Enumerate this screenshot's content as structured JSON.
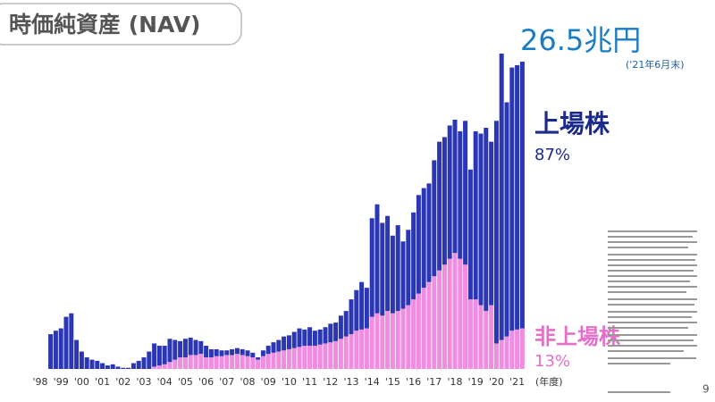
{
  "chart_data": {
    "type": "bar",
    "stacked": true,
    "title": "時価純資産 (NAV)",
    "total_label": "26.5兆円",
    "total_note": "('21年6月末)",
    "x_axis_label": "(年度)",
    "page_number": "9",
    "categories": [
      "'98",
      null,
      null,
      null,
      "'99",
      null,
      null,
      null,
      "'00",
      null,
      null,
      null,
      "'01",
      null,
      null,
      null,
      "'02",
      null,
      null,
      null,
      "'03",
      null,
      null,
      null,
      "'04",
      null,
      null,
      null,
      "'05",
      null,
      null,
      null,
      "'06",
      null,
      null,
      null,
      "'07",
      null,
      null,
      null,
      "'08",
      null,
      null,
      null,
      "'09",
      null,
      null,
      null,
      "'10",
      null,
      null,
      null,
      "'11",
      null,
      null,
      null,
      "'12",
      null,
      null,
      null,
      "'13",
      null,
      null,
      null,
      "'14",
      null,
      null,
      null,
      "'15",
      null,
      null,
      null,
      "'16",
      null,
      null,
      null,
      "'17",
      null,
      null,
      null,
      "'18",
      null,
      null,
      null,
      "'19",
      null,
      null,
      null,
      "'20",
      null,
      null,
      null,
      "'21",
      null
    ],
    "series": [
      {
        "name": "非上場株",
        "share": "13%",
        "color": "#f08de0",
        "values": [
          0,
          0,
          0,
          0,
          0,
          0,
          0,
          0,
          0,
          0,
          0,
          0,
          0,
          0,
          0,
          0,
          0,
          0,
          0,
          0,
          0,
          0,
          0.2,
          0.3,
          0.4,
          0.6,
          0.8,
          1.0,
          1.0,
          1.2,
          1.2,
          1.3,
          1.0,
          1.0,
          1.1,
          1.1,
          1.2,
          1.2,
          1.3,
          1.2,
          1.1,
          1.0,
          0.8,
          1.1,
          1.3,
          1.4,
          1.5,
          1.6,
          1.7,
          1.8,
          1.9,
          2.0,
          2.0,
          2.0,
          2.1,
          2.2,
          2.3,
          2.4,
          2.6,
          2.8,
          3.0,
          3.3,
          3.4,
          3.5,
          4.5,
          4.8,
          4.6,
          5.0,
          4.8,
          5.0,
          5.2,
          5.5,
          6.0,
          6.5,
          7.0,
          7.5,
          8.0,
          8.5,
          9.0,
          9.5,
          10.0,
          9.5,
          9.0,
          6.0,
          6.0,
          5.5,
          5.0,
          5.5,
          2.2,
          2.5,
          2.8,
          3.3,
          3.4,
          3.5
        ]
      },
      {
        "name": "上場株",
        "share": "87%",
        "color": "#2a36b4",
        "values": [
          0,
          0,
          3.0,
          3.3,
          3.5,
          4.5,
          4.8,
          2.5,
          1.5,
          1.0,
          0.8,
          0.7,
          0.5,
          0.3,
          0.4,
          0.2,
          0.1,
          0.1,
          0.5,
          0.7,
          1.0,
          1.5,
          2.0,
          1.7,
          1.6,
          2.0,
          1.7,
          1.4,
          1.6,
          1.5,
          1.3,
          1.1,
          1.0,
          0.7,
          0.6,
          0.5,
          0.4,
          0.5,
          0.5,
          0.5,
          0.5,
          0.4,
          0.2,
          0.5,
          0.7,
          0.9,
          1.0,
          1.2,
          1.2,
          1.4,
          1.6,
          1.4,
          1.6,
          1.3,
          1.3,
          1.4,
          1.6,
          1.6,
          2.0,
          2.2,
          3.0,
          3.5,
          4.1,
          3.5,
          8.5,
          9.4,
          8.0,
          8.2,
          6.7,
          7.4,
          5.8,
          6.5,
          7.5,
          8.5,
          8.6,
          8.5,
          10.0,
          11.1,
          11.0,
          11.5,
          11.5,
          11.0,
          12.4,
          11.2,
          14.5,
          14.8,
          15.8,
          14.1,
          19.2,
          24.7,
          20.2,
          22.7,
          22.8,
          23.0
        ]
      }
    ]
  }
}
